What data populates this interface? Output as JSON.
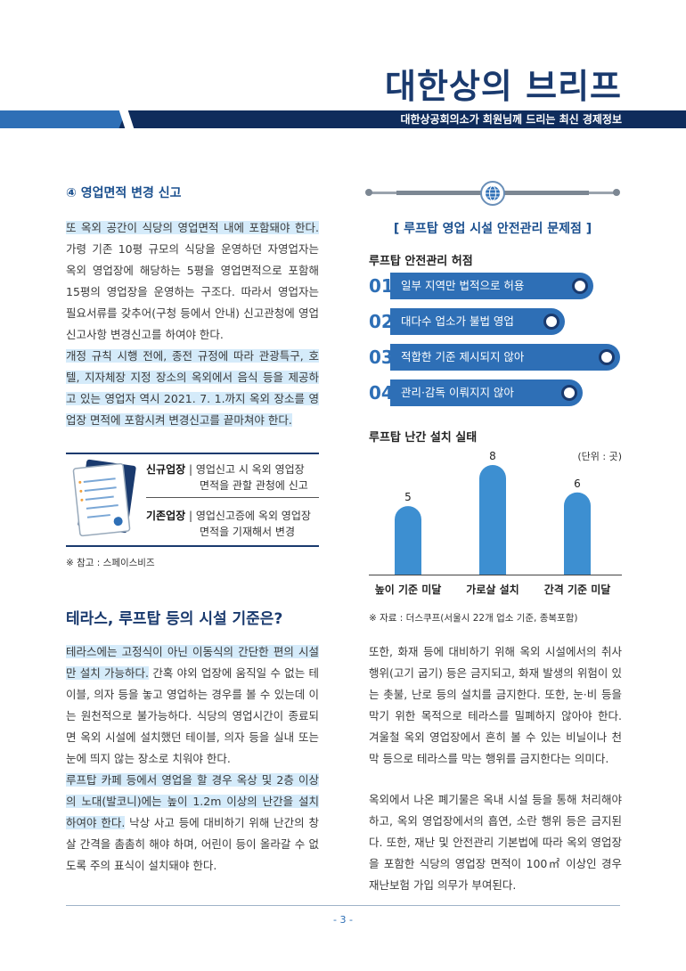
{
  "header": {
    "title": "대한상의 브리프",
    "subtitle": "대한상공회의소가 회원님께 드리는 최신 경제정보"
  },
  "left": {
    "section4_title": "④ 영업면적 변경 신고",
    "para1_hl": "또 옥외 공간이 식당의 영업면적 내에 포함돼야 한다.",
    "para1_rest": " 가령 기존 10평 규모의 식당을 운영하던 자영업자는 옥외 영업장에 해당하는 5평을 영업면적으로 포함해 15평의 영업장을 운영하는 구조다. 따라서 영업자는 필요서류를 갖추어(구청 등에서 안내) 신고관청에 영업신고사항 변경신고를 하여야 한다.",
    "para2_hl": "개정 규칙 시행 전에, 종전 규정에 따라 관광특구, 호텔, 지자체장 지정 장소의 옥외에서 음식 등을 제공하고 있는 영업자 역시 2021. 7. 1.까지 옥외 장소를 영업장 면적에 포함시켜 변경신고를 끝마쳐야 한다.",
    "info_new_label": "신규업장",
    "info_new_text1": "영업신고 시 옥외 영업장",
    "info_new_text2": "면적을 관할 관청에 신고",
    "info_old_label": "기존업장",
    "info_old_text1": "영업신고증에 옥외 영업장",
    "info_old_text2": "면적을 기재해서 변경",
    "ref_note": "※ 참고 : 스페이스비즈",
    "heading": "테라스, 루프탑 등의 시설 기준은?",
    "para3_hl": "테라스에는 고정식이 아닌 이동식의 간단한 편의 시설만 설치 가능하다.",
    "para3_rest": " 간혹 야외 업장에 움직일 수 없는 테이블, 의자 등을 놓고 영업하는 경우를 볼 수 있는데 이는 원천적으로 불가능하다. 식당의 영업시간이 종료되면 옥외 시설에 설치했던 테이블, 의자 등을 실내 또는 눈에 띄지 않는 장소로 치워야 한다.",
    "para4_hl": "루프탑 카페 등에서 영업을 할 경우 옥상 및 2층 이상의 노대(발코니)에는 높이 1.2m 이상의 난간을 설치하여야 한다.",
    "para4_rest": " 낙상 사고 등에 대비하기 위해 난간의 창살 간격을 촘촘히 해야 하며, 어린이 등이 올라갈 수 없도록 주의 표식이 설치돼야 한다."
  },
  "right": {
    "box_title": "[ 루프탑 영업 시설 안전관리 문제점 ]",
    "issues_head": "루프탑 안전관리 허점",
    "issues": [
      {
        "num": "01",
        "text": "일부 지역만 법적으로 허용"
      },
      {
        "num": "02",
        "text": "대다수 업소가 불법 영업"
      },
      {
        "num": "03",
        "text": "적합한 기준 제시되지 않아"
      },
      {
        "num": "04",
        "text": "관리·감독 이뤄지지 않아"
      }
    ],
    "chart_head": "루프탑 난간 설치 실태",
    "source": "※ 자료 :  더스쿠프(서울시 22개 업소 기준, 종복포함)",
    "para5": "또한, 화재 등에 대비하기 위해 옥외 시설에서의 취사행위(고기 굽기) 등은 금지되고, 화재 발생의 위험이 있는 촛불, 난로 등의 설치를 금지한다. 또한, 눈·비 등을 막기 위한 목적으로 테라스를 밀폐하지 않아야 한다. 겨울철 옥외 영업장에서 흔히 볼 수 있는 비닐이나 천막 등으로 테라스를 막는 행위를 금지한다는 의미다.",
    "para6": "옥외에서 나온 폐기물은 옥내 시설 등을 통해 처리해야 하고, 옥외 영업장에서의 흡연, 소란 행위 등은 금지된다. 또한, 재난 및 안전관리 기본법에 따라 옥외 영업장을 포함한 식당의 영업장 면적이 100㎡ 이상인 경우 재난보험 가입 의무가 부여된다."
  },
  "chart_data": {
    "type": "bar",
    "categories": [
      "높이 기준 미달",
      "가로살 설치",
      "간격 기준 미달"
    ],
    "values": [
      5,
      8,
      6
    ],
    "title": "루프탑 난간 설치 실태",
    "unit": "(단위 : 곳)",
    "ylim": [
      0,
      8
    ],
    "bar_color": "#3d8fd1"
  },
  "footer": {
    "page": "- 3 -"
  },
  "colors": {
    "navy": "#0f2c5c",
    "accent": "#2e6fb6",
    "highlight": "#d5ebfa"
  }
}
